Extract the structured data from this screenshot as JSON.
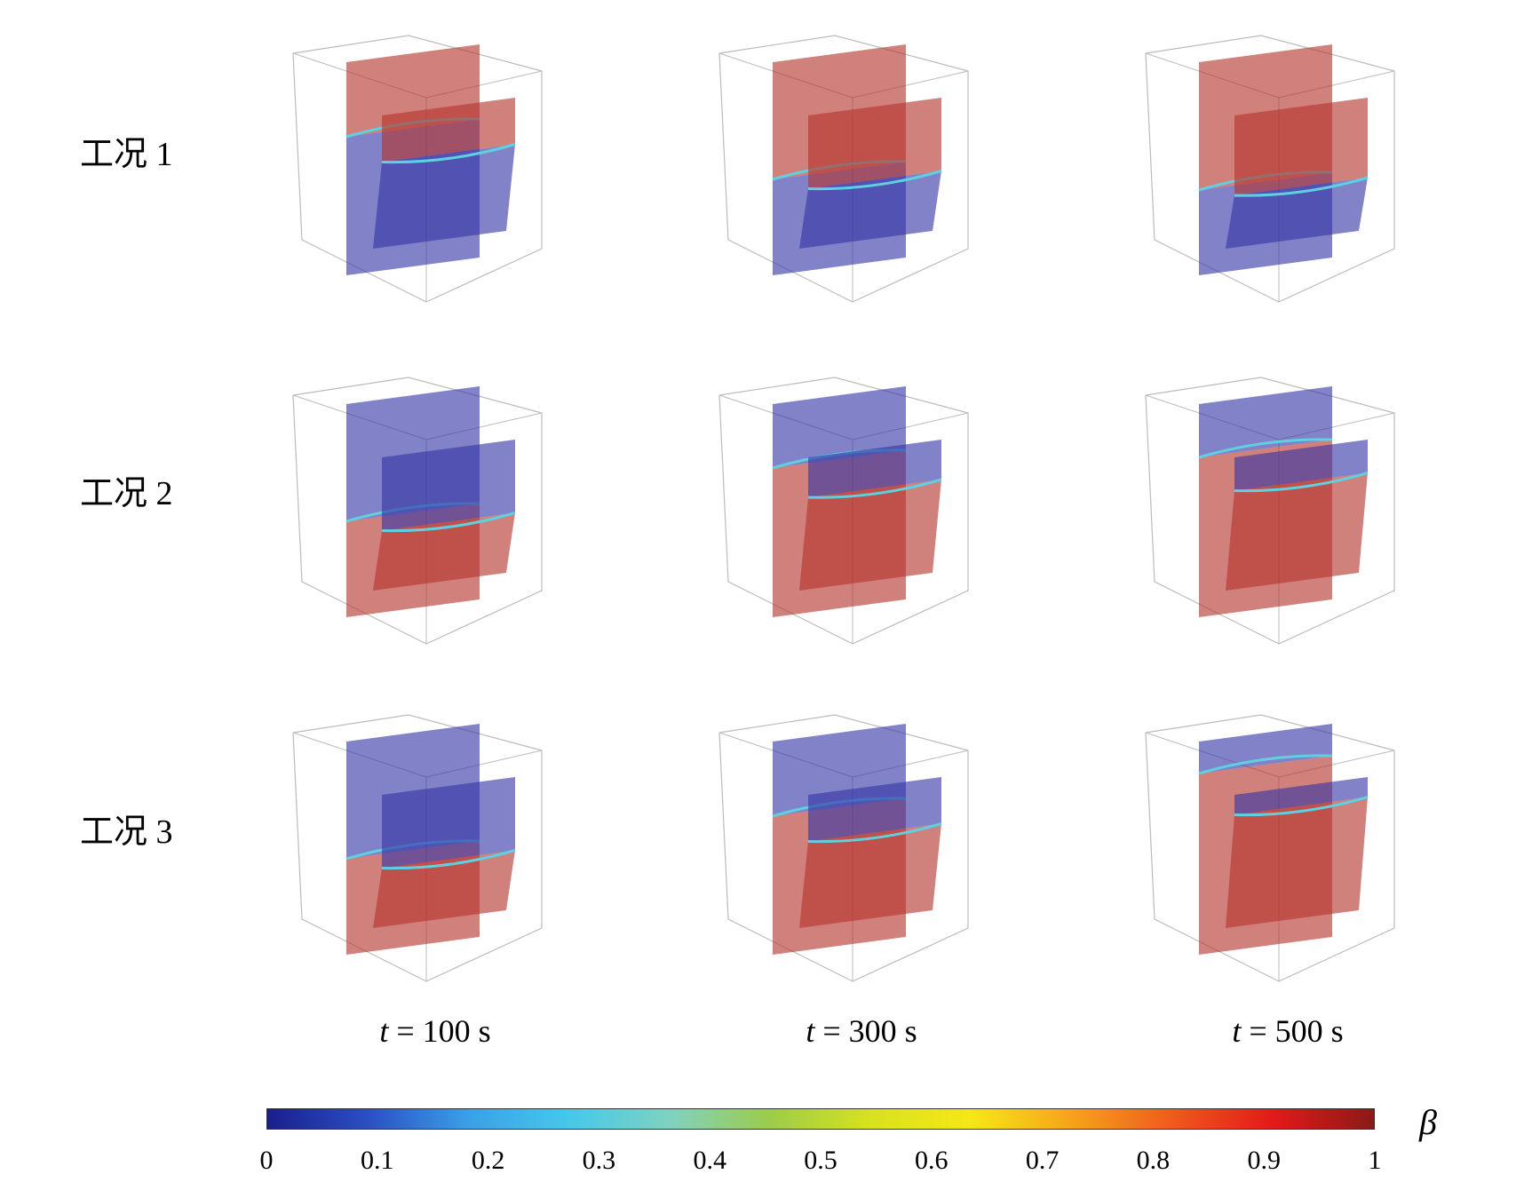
{
  "rows": [
    {
      "label": "工况 1"
    },
    {
      "label": "工况 2"
    },
    {
      "label": "工况 3"
    }
  ],
  "columns": [
    {
      "t_var": "t",
      "t_rest": " = 100 s"
    },
    {
      "t_var": "t",
      "t_rest": " = 300 s"
    },
    {
      "t_var": "t",
      "t_rest": " = 500 s"
    }
  ],
  "colorbar": {
    "title": "β",
    "ticks": [
      "0",
      "0.1",
      "0.2",
      "0.3",
      "0.4",
      "0.5",
      "0.6",
      "0.7",
      "0.8",
      "0.9",
      "1"
    ],
    "min": 0,
    "max": 1,
    "colors": [
      "#1a1f8c",
      "#2b4fc4",
      "#3aa0e8",
      "#45c8ea",
      "#7fd2c0",
      "#9ccc4a",
      "#d8e21e",
      "#f6e716",
      "#f7a21c",
      "#ef5a1c",
      "#e21a1a",
      "#8b1a16"
    ]
  },
  "colors": {
    "red_phase": "#b4332c",
    "blue_phase": "#3336a4",
    "box_edge": "#bbbbbb"
  }
}
